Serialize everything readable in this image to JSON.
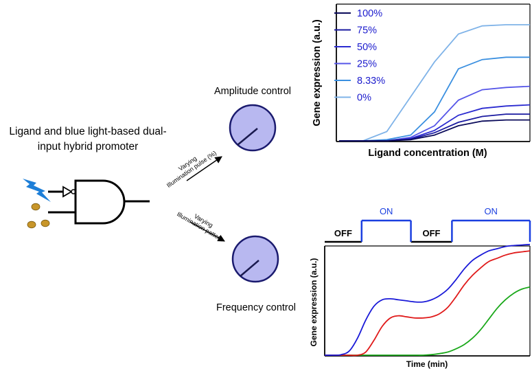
{
  "promoter": {
    "title_line1": "Ligand and blue light-based dual-",
    "title_line2": "input hybrid promoter",
    "light_color": "#1e7fd8",
    "ligand_color": "#c8962a"
  },
  "amplitude": {
    "label": "Amplitude control",
    "arrow_line1": "Varying",
    "arrow_line2": "Illumination pulse (%)",
    "dial_fill": "#b8b8f0",
    "dial_stroke": "#1a1a6e"
  },
  "frequency": {
    "label": "Frequency control",
    "arrow_line1": "Varying",
    "arrow_line2": "Illumination pattern",
    "dial_fill": "#b8b8f0",
    "dial_stroke": "#1a1a6e"
  },
  "chart_data": [
    {
      "type": "line",
      "title": "",
      "xlabel": "Ligand concentration (M)",
      "ylabel": "Gene expression (a.u.)",
      "x": [
        0,
        1,
        2,
        3,
        4,
        5,
        6,
        7,
        8
      ],
      "ylim": [
        0,
        100
      ],
      "grid": false,
      "legend_position": "top-left",
      "series": [
        {
          "name": "100%",
          "color": "#0a0a5a",
          "values": [
            0,
            0,
            0,
            1,
            5,
            13,
            17,
            18,
            18
          ]
        },
        {
          "name": "75%",
          "color": "#1a1aa0",
          "values": [
            0,
            0,
            0,
            1.5,
            7,
            16,
            21,
            23,
            23
          ]
        },
        {
          "name": "50%",
          "color": "#2a2ad0",
          "values": [
            0,
            0,
            0,
            2,
            9,
            22,
            28,
            30,
            31
          ]
        },
        {
          "name": "25%",
          "color": "#5555e8",
          "values": [
            0,
            0,
            0,
            3,
            13,
            35,
            44,
            46,
            47
          ]
        },
        {
          "name": "8.33%",
          "color": "#3a8fe0",
          "values": [
            0,
            0,
            1,
            5,
            25,
            62,
            70,
            72,
            72
          ]
        },
        {
          "name": "0%",
          "color": "#7fb3e8",
          "values": [
            0,
            0,
            8,
            38,
            68,
            92,
            99,
            100,
            100
          ]
        }
      ]
    },
    {
      "type": "line",
      "title": "",
      "xlabel": "Time (min)",
      "ylabel": "Gene expression (a.u.)",
      "x": [
        0,
        0.4,
        0.8,
        1.2,
        1.6,
        2.0,
        2.4,
        2.8,
        3.2,
        3.6,
        4.0,
        4.4,
        4.8,
        5.2,
        5.6,
        6.0,
        6.4,
        6.8,
        7.2,
        7.6,
        8.0,
        8.4,
        8.8,
        9.2,
        9.6,
        10.0
      ],
      "ylim": [
        0,
        100
      ],
      "grid": false,
      "series": [
        {
          "color": "#1a1ad8",
          "values": [
            0,
            0,
            0.5,
            4,
            16,
            33,
            46,
            52,
            53,
            52,
            51,
            50,
            50,
            52,
            56,
            62,
            71,
            81,
            89,
            94,
            98,
            100,
            102,
            103,
            103.5,
            104
          ]
        },
        {
          "color": "#e01a1a",
          "values": [
            0,
            0,
            0,
            0,
            0,
            3,
            14,
            27,
            35,
            37,
            36,
            35,
            35,
            36,
            39,
            45,
            55,
            66,
            75,
            82,
            88,
            91,
            94,
            96,
            97,
            98
          ]
        },
        {
          "color": "#1aa81a",
          "values": [
            0,
            0,
            0,
            0,
            0,
            0,
            0,
            0,
            0,
            0,
            0,
            0,
            0,
            0.5,
            1.5,
            3,
            6,
            10,
            16,
            24,
            34,
            44,
            52,
            58,
            62,
            64
          ]
        }
      ],
      "illumination": {
        "phases": [
          {
            "label": "OFF",
            "state": "off",
            "start": 0,
            "end": 1.8,
            "color": "#000000"
          },
          {
            "label": "ON",
            "state": "on",
            "start": 1.8,
            "end": 4.2,
            "color": "#1a3fe0"
          },
          {
            "label": "OFF",
            "state": "off",
            "start": 4.2,
            "end": 6.2,
            "color": "#000000"
          },
          {
            "label": "ON",
            "state": "on",
            "start": 6.2,
            "end": 10.0,
            "color": "#1a3fe0"
          }
        ]
      }
    }
  ]
}
